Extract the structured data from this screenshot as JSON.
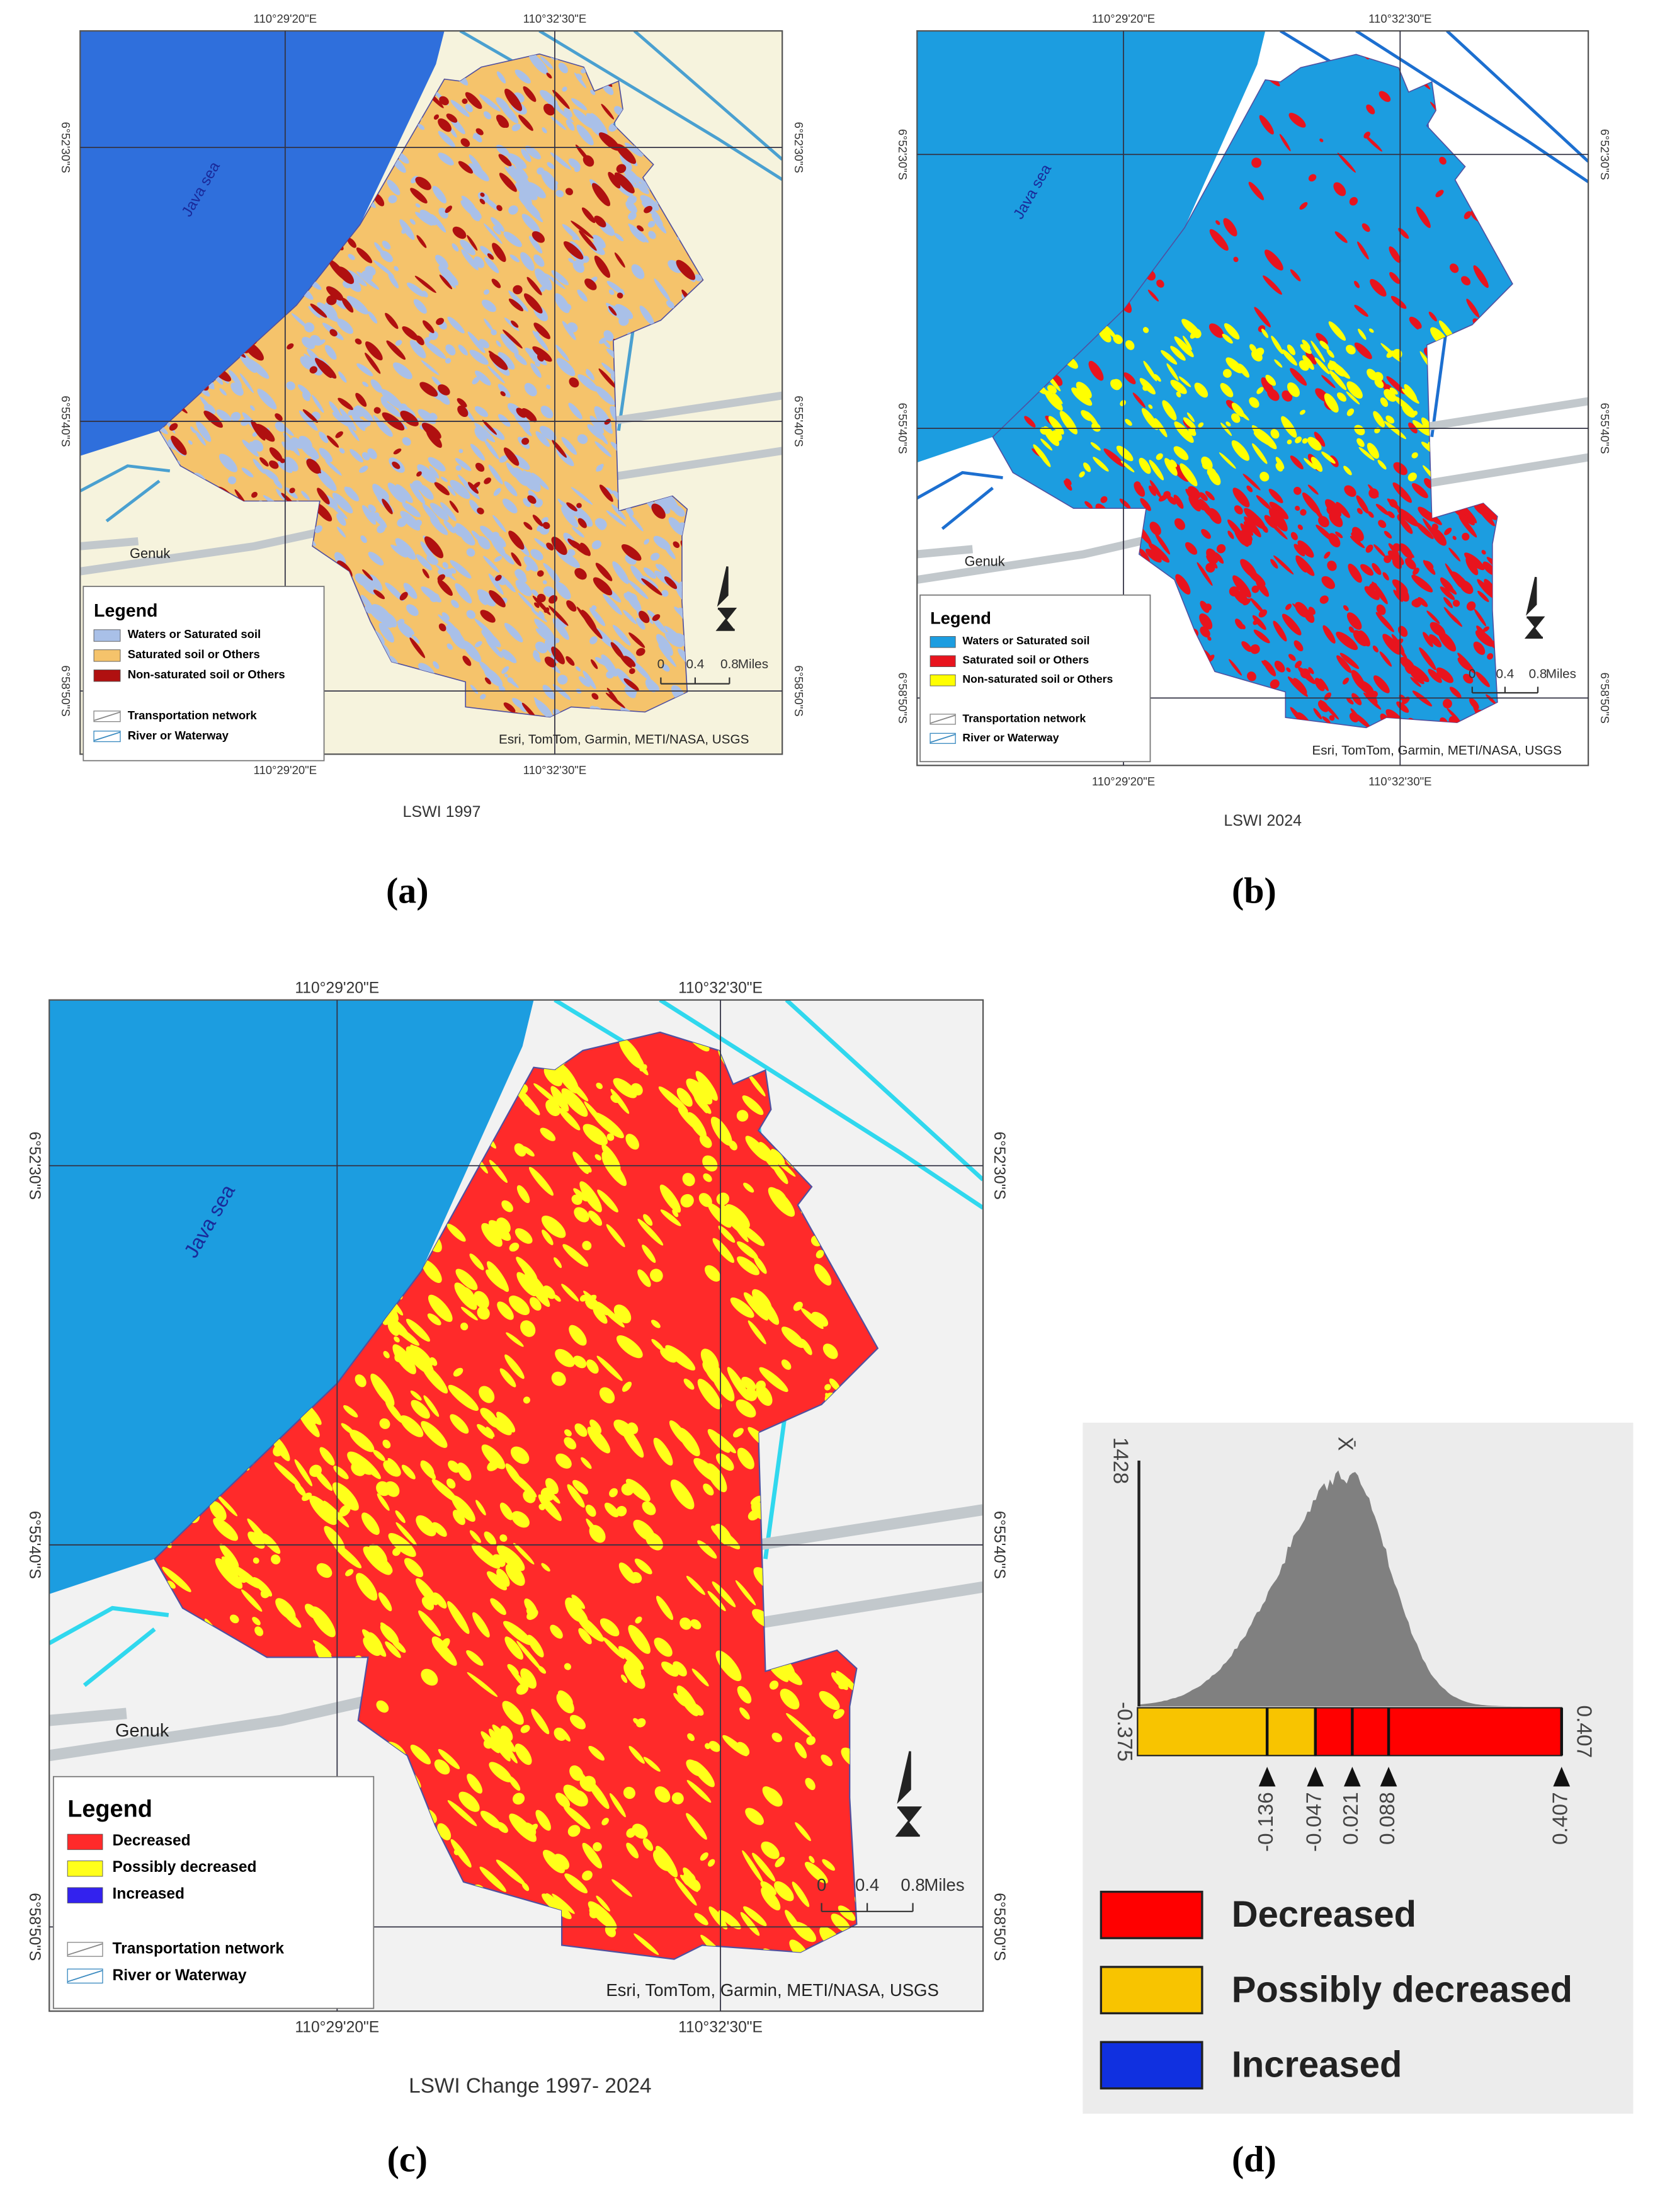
{
  "panels": [
    {
      "label": "(a)",
      "caption": "LSWI 1997",
      "lon_labels": [
        "110°29'20\"E",
        "110°32'30\"E"
      ],
      "lat_labels": [
        "6°52'30\"S",
        "6°55'40\"S",
        "6°58'50\"S"
      ],
      "sea_label": "Java sea",
      "place_label": "Genuk",
      "legend": {
        "title": "Legend",
        "items": [
          {
            "label": "Waters or Saturated soil",
            "color": "#a9c0e8"
          },
          {
            "label": "Saturated soil or Others",
            "color": "#f5c36b"
          },
          {
            "label": "Non-saturated soil or Others",
            "color": "#b01010"
          }
        ],
        "lines": [
          "Transportation network",
          "River or Waterway"
        ]
      },
      "scale": {
        "ticks": [
          0,
          0.4,
          0.8
        ],
        "unit": "Miles"
      },
      "attribution": "Esri, TomTom, Garmin, METI/NASA, USGS"
    },
    {
      "label": "(b)",
      "caption": "LSWI 2024",
      "lon_labels": [
        "110°29'20\"E",
        "110°32'30\"E"
      ],
      "lat_labels": [
        "6°52'30\"S",
        "6°55'40\"S",
        "6°58'50\"S"
      ],
      "sea_label": "Java sea",
      "place_label": "Genuk",
      "legend": {
        "title": "Legend",
        "items": [
          {
            "label": "Waters or Saturated soil",
            "color": "#1c9de0"
          },
          {
            "label": "Saturated soil or Others",
            "color": "#e8141e"
          },
          {
            "label": "Non-saturated soil or Others",
            "color": "#ffff00"
          }
        ],
        "lines": [
          "Transportation network",
          "River or Waterway"
        ]
      },
      "scale": {
        "ticks": [
          0,
          0.4,
          0.8
        ],
        "unit": "Miles"
      },
      "attribution": "Esri, TomTom, Garmin, METI/NASA, USGS"
    },
    {
      "label": "(c)",
      "caption": "LSWI Change 1997- 2024",
      "lon_labels": [
        "110°29'20\"E",
        "110°32'30\"E"
      ],
      "lat_labels": [
        "6°52'30\"S",
        "6°55'40\"S",
        "6°58'50\"S"
      ],
      "sea_label": "Java sea",
      "place_label": "Genuk",
      "legend": {
        "title": "Legend",
        "items": [
          {
            "label": "Decreased",
            "color": "#ff2a2a"
          },
          {
            "label": "Possibly decreased",
            "color": "#ffff1a"
          },
          {
            "label": "Increased",
            "color": "#3322ee"
          }
        ],
        "lines": [
          "Transportation network",
          "River or Waterway"
        ]
      },
      "scale": {
        "ticks": [
          0,
          0.4,
          0.8
        ],
        "unit": "Miles"
      },
      "attribution": "Esri, TomTom, Garmin, METI/NASA, USGS"
    }
  ],
  "histogram": {
    "label": "(d)",
    "max_count": 1428,
    "mean_label": "X̄",
    "range": [
      -0.375,
      0.407
    ],
    "breaks": [
      -0.136,
      -0.047,
      0.021,
      0.088,
      0.407
    ],
    "legend": [
      {
        "label": "Decreased",
        "color": "#ff0000"
      },
      {
        "label": "Possibly decreased",
        "color": "#f8c400"
      },
      {
        "label": "Increased",
        "color": "#1030e0"
      }
    ]
  }
}
